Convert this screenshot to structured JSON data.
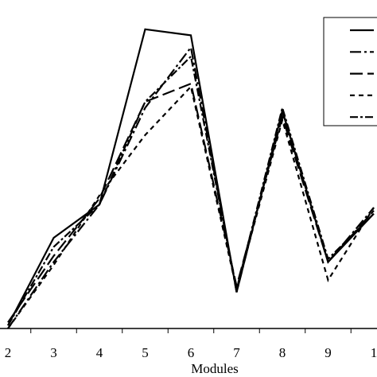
{
  "chart_data": {
    "type": "line",
    "x_label": "Modules",
    "categories": [
      "2",
      "3",
      "4",
      "5",
      "6",
      "7",
      "8",
      "9",
      "1"
    ],
    "ylim": [
      0,
      100
    ],
    "series": [
      {
        "color": "#000000",
        "dash": "none",
        "values": [
          1,
          30,
          41,
          99,
          97,
          12,
          72,
          22,
          38
        ]
      },
      {
        "color": "#000000",
        "dash": "14 4 3 4",
        "values": [
          0,
          22,
          41,
          73,
          93,
          12,
          72,
          22,
          40
        ]
      },
      {
        "color": "#000000",
        "dash": "16 6",
        "values": [
          2,
          24,
          43,
          75,
          81,
          14,
          70,
          22,
          39
        ]
      },
      {
        "color": "#000000",
        "dash": "6 5",
        "values": [
          0,
          21,
          44,
          64,
          80,
          13,
          69,
          16,
          40
        ]
      },
      {
        "color": "#000000",
        "dash": "10 3 3 3",
        "values": [
          1,
          27,
          41,
          75,
          90,
          13,
          73,
          23,
          38
        ]
      }
    ]
  }
}
